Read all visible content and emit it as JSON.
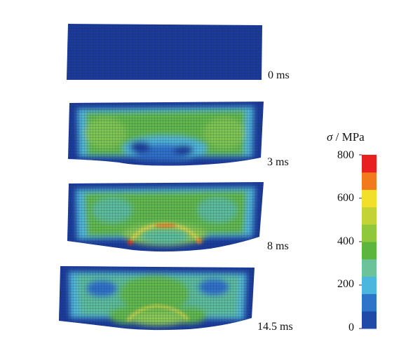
{
  "frames": [
    {
      "time_label": "0 ms"
    },
    {
      "time_label": "3 ms"
    },
    {
      "time_label": "8 ms"
    },
    {
      "time_label": "14.5 ms"
    }
  ],
  "colorbar": {
    "symbol": "σ",
    "unit": "/ MPa",
    "ticks": [
      "800",
      "600",
      "400",
      "200",
      "0"
    ],
    "min": 0,
    "max": 800,
    "colors": [
      "#1f4aa8",
      "#2e74c9",
      "#4bb7de",
      "#6cc39a",
      "#5cb53d",
      "#8fc83a",
      "#c2d435",
      "#f2df2a",
      "#f07a1c",
      "#e8201f"
    ]
  },
  "palette": {
    "deep_blue": "#1a3a9c",
    "mid_blue": "#2f6fca",
    "cyan": "#4fb8dc",
    "teal": "#5cbf9c",
    "green": "#62bb4a",
    "light_green": "#8ccc52",
    "yellow": "#e4d84a",
    "orange": "#e8862a",
    "red": "#d8331f",
    "mesh": "#1d2b4a"
  }
}
